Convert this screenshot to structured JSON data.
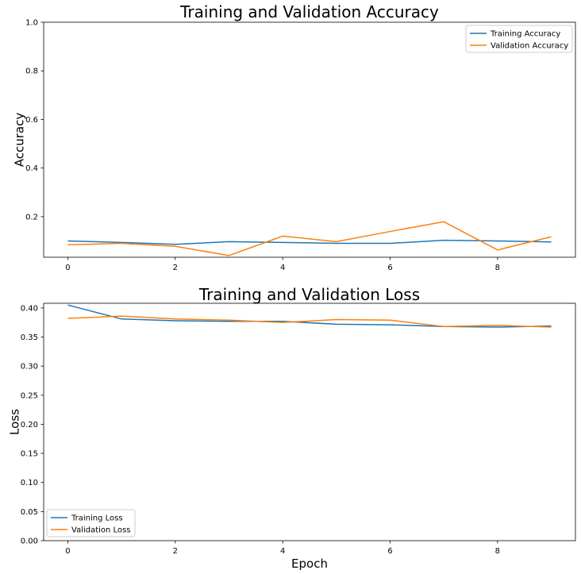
{
  "colors": {
    "training": "#1f77b4",
    "validation": "#ff7f0e"
  },
  "chart_data": [
    {
      "type": "line",
      "title": "Training and Validation Accuracy",
      "xlabel": "",
      "ylabel": "Accuracy",
      "xlim": [
        -0.45,
        9.45
      ],
      "ylim": [
        0.0,
        1.0
      ],
      "xticks": [
        0,
        2,
        4,
        6,
        8
      ],
      "xtick_labels": [
        "0",
        "2",
        "4",
        "6",
        "8"
      ],
      "yticks": [
        0.2,
        0.4,
        0.6,
        0.8,
        1.0
      ],
      "ytick_labels": [
        "0.2",
        "0.4",
        "0.6",
        "0.8",
        "1.0"
      ],
      "y_visible_min": 0.0,
      "grid": false,
      "legend_position": "top-right",
      "x": [
        0,
        1,
        2,
        3,
        4,
        5,
        6,
        7,
        8,
        9
      ],
      "series": [
        {
          "name": "Training Accuracy",
          "color_key": "training",
          "values": [
            0.1,
            0.094,
            0.086,
            0.097,
            0.094,
            0.09,
            0.09,
            0.103,
            0.1,
            0.096
          ]
        },
        {
          "name": "Validation Accuracy",
          "color_key": "validation",
          "values": [
            0.084,
            0.09,
            0.078,
            0.04,
            0.12,
            0.097,
            0.139,
            0.179,
            0.063,
            0.117
          ]
        }
      ]
    },
    {
      "type": "line",
      "title": "Training and Validation Loss",
      "xlabel": "Epoch",
      "ylabel": "Loss",
      "xlim": [
        -0.45,
        9.45
      ],
      "ylim": [
        0.0,
        0.408
      ],
      "xticks": [
        0,
        2,
        4,
        6,
        8
      ],
      "xtick_labels": [
        "0",
        "2",
        "4",
        "6",
        "8"
      ],
      "yticks": [
        0.0,
        0.05,
        0.1,
        0.15,
        0.2,
        0.25,
        0.3,
        0.35,
        0.4
      ],
      "ytick_labels": [
        "0.00",
        "0.05",
        "0.10",
        "0.15",
        "0.20",
        "0.25",
        "0.30",
        "0.35",
        "0.40"
      ],
      "grid": false,
      "legend_position": "bottom-left",
      "x": [
        0,
        1,
        2,
        3,
        4,
        5,
        6,
        7,
        8,
        9
      ],
      "series": [
        {
          "name": "Training Loss",
          "color_key": "training",
          "values": [
            0.405,
            0.381,
            0.378,
            0.377,
            0.377,
            0.372,
            0.371,
            0.368,
            0.367,
            0.369
          ]
        },
        {
          "name": "Validation Loss",
          "color_key": "validation",
          "values": [
            0.382,
            0.386,
            0.381,
            0.379,
            0.375,
            0.38,
            0.379,
            0.368,
            0.37,
            0.367
          ]
        }
      ]
    }
  ]
}
